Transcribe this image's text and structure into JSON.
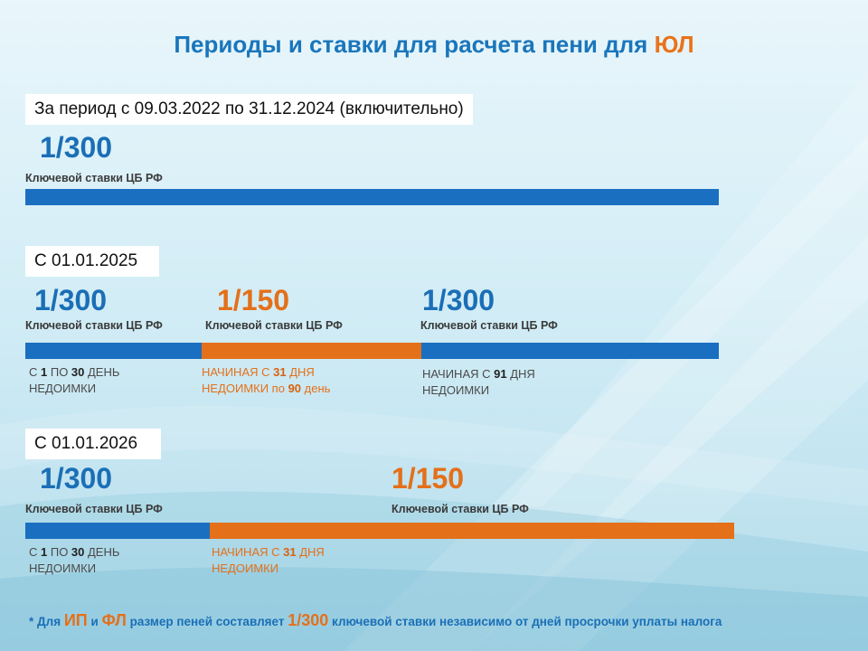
{
  "title": {
    "main": "Периоды и ставки для расчета пени для ",
    "accent": "ЮЛ"
  },
  "section1": {
    "label": "За период  с 09.03.2022 по 31.12.2024 (включительно)",
    "rate": "1/300",
    "sub": "Ключевой ставки ЦБ РФ"
  },
  "section2": {
    "label": "С 01.01.2025",
    "segments": [
      {
        "rate": "1/300",
        "sub": "Ключевой ставки ЦБ РФ",
        "note1_a": "С ",
        "note1_b": "1",
        "note1_c": " ПО ",
        "note1_d": "30",
        "note1_e": " ДЕНЬ",
        "note2": "НЕДОИМКИ"
      },
      {
        "rate": "1/150",
        "sub": "Ключевой ставки ЦБ РФ",
        "note1_a": "НАЧИНАЯ  С ",
        "note1_b": "31",
        "note1_c": " ДНЯ",
        "note2_a": "НЕДОИМКИ по ",
        "note2_b": "90",
        "note2_c": " день"
      },
      {
        "rate": "1/300",
        "sub": "Ключевой ставки ЦБ РФ",
        "note1_a": "НАЧИНАЯ  С ",
        "note1_b": "91",
        "note1_c": " ДНЯ",
        "note2": "НЕДОИМКИ"
      }
    ]
  },
  "section3": {
    "label": "С 01.01.2026",
    "segments": [
      {
        "rate": "1/300",
        "sub": "Ключевой ставки ЦБ РФ",
        "note1_a": "С ",
        "note1_b": "1",
        "note1_c": " ПО ",
        "note1_d": "30",
        "note1_e": " ДЕНЬ",
        "note2": "НЕДОИМКИ"
      },
      {
        "rate": "1/150",
        "sub": "Ключевой ставки ЦБ РФ",
        "note1_a": "НАЧИНАЯ  С ",
        "note1_b": "31",
        "note1_c": " ДНЯ",
        "note2": "НЕДОИМКИ"
      }
    ]
  },
  "footnote": {
    "p1": "* Для ",
    "ip": "ИП",
    "p2": " и ",
    "fl": "ФЛ",
    "p3": " размер пеней составляет ",
    "rate": "1/300",
    "p4": " ключевой ставки независимо от дней просрочки уплаты налога"
  },
  "colors": {
    "blue": "#1a6fc0",
    "orange": "#e4701a",
    "title": "#1a76bb"
  }
}
